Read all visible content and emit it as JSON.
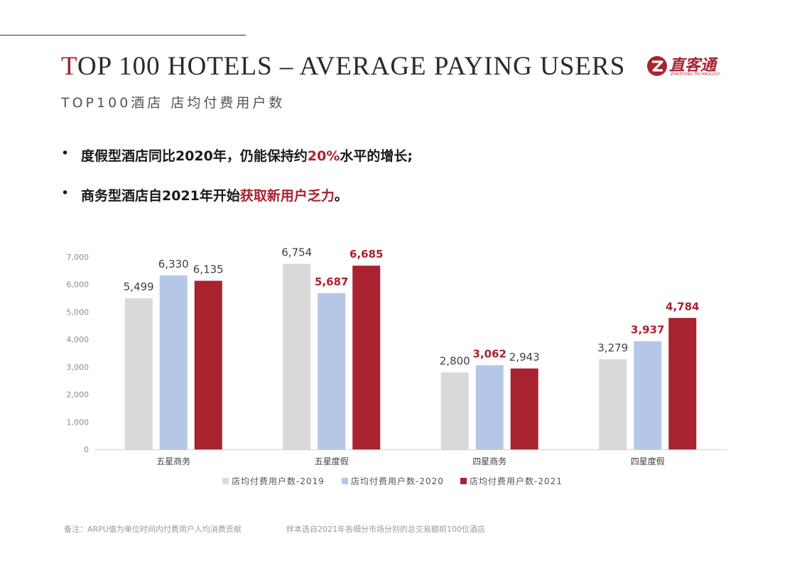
{
  "header": {
    "title_first": "T",
    "title_rest": "OP 100 HOTELS – AVERAGE PAYING USERS",
    "subtitle": "TOP100酒店 店均付费用户数"
  },
  "logo": {
    "name": "直客通",
    "tagline": "ZHIKETONG TECHNOLOGY",
    "brand_color": "#a8232f"
  },
  "bullets": [
    {
      "marker": "•",
      "before": "度假型酒店同比2020年，仍能保持约",
      "highlight": "20%",
      "after": "水平的增长;"
    },
    {
      "marker": "•",
      "before": "商务型酒店自2021年开始",
      "highlight": "获取新用户乏力",
      "after": "。"
    }
  ],
  "chart_data": {
    "type": "bar",
    "categories": [
      "五星商务",
      "五星度假",
      "四星商务",
      "四星度假"
    ],
    "series": [
      {
        "name": "店均付费用户数-2019",
        "color": "#d9d9d9",
        "values": [
          5499,
          6754,
          2800,
          3279
        ],
        "labels": [
          "5,499",
          "6,754",
          "2,800",
          "3,279"
        ],
        "label_highlight": [
          false,
          false,
          false,
          false
        ]
      },
      {
        "name": "店均付费用户数-2020",
        "color": "#b4c7e7",
        "values": [
          6330,
          5687,
          3062,
          3937
        ],
        "labels": [
          "6,330",
          "5,687",
          "3,062",
          "3,937"
        ],
        "label_highlight": [
          false,
          true,
          true,
          true
        ]
      },
      {
        "name": "店均付费用户数-2021",
        "color": "#a8232f",
        "values": [
          6135,
          6685,
          2943,
          4784
        ],
        "labels": [
          "6,135",
          "6,685",
          "2,943",
          "4,784"
        ],
        "label_highlight": [
          false,
          true,
          false,
          true
        ]
      }
    ],
    "ylim": [
      0,
      7000
    ],
    "yticks": [
      0,
      1000,
      2000,
      3000,
      4000,
      5000,
      6000,
      7000
    ],
    "ytick_labels": [
      "0",
      "1,000",
      "2,000",
      "3,000",
      "4,000",
      "5,000",
      "6,000",
      "7,000"
    ],
    "highlight_color": "#a8232f",
    "grid": false,
    "legend_position": "bottom"
  },
  "footnotes": {
    "note": "备注：ARPU值为单位时间内付费用户人均消费贡献",
    "sample": "样本选自2021年各细分市场分别的总交易额前100位酒店"
  }
}
